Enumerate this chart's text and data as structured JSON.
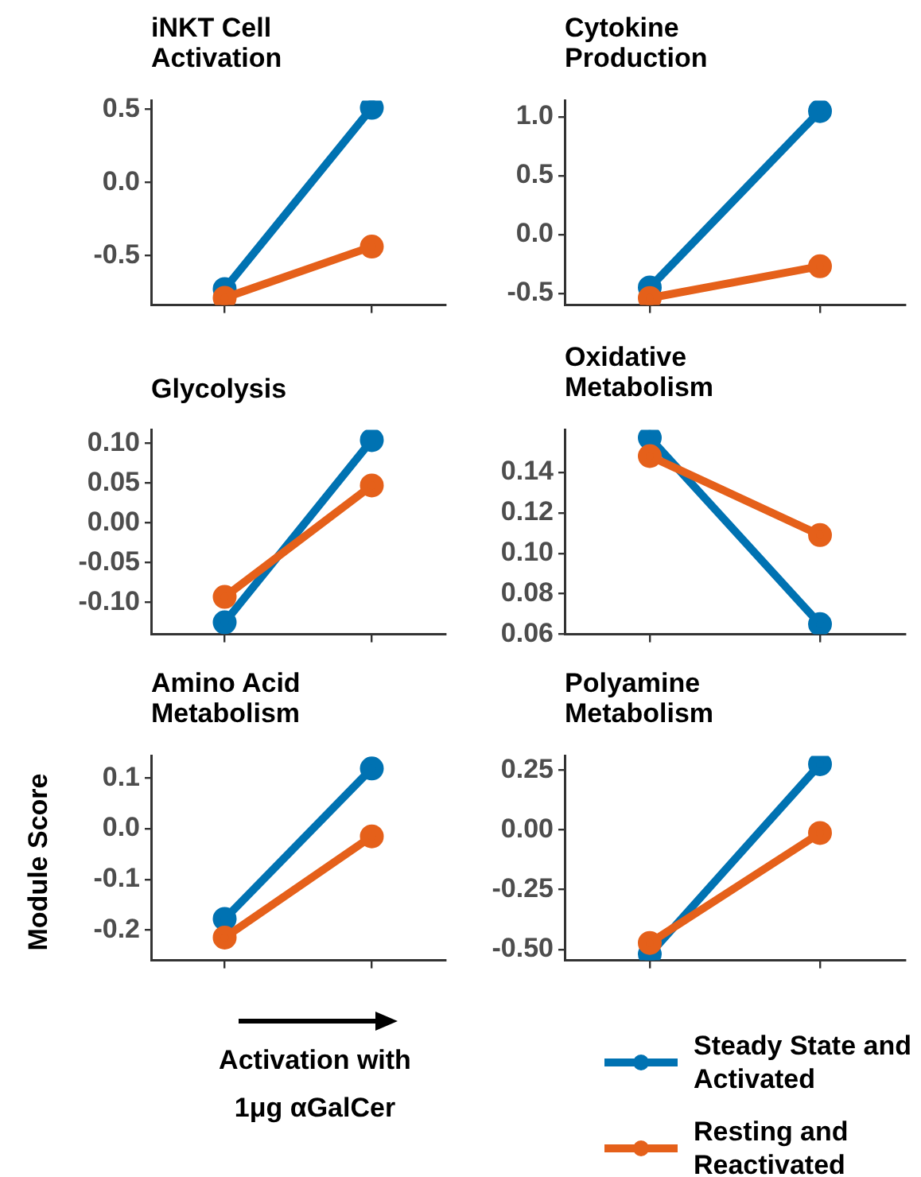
{
  "chart_data": [
    {
      "type": "line",
      "title": "iNKT Cell Activation",
      "categories": [
        null,
        null
      ],
      "ylim": [
        -0.84,
        0.56
      ],
      "yticks": [
        0.5,
        {
          "value": 0,
          "label": "0.0"
        },
        -0.5
      ],
      "tick_labels": "y",
      "grid": false,
      "marker": "circle",
      "series": [
        {
          "color": "#0072b2",
          "values": [
            -0.73,
            0.51
          ]
        },
        {
          "color": "#e5601a",
          "values": [
            -0.79,
            -0.44
          ]
        }
      ]
    },
    {
      "type": "line",
      "title": "Cytokine Production",
      "categories": [
        null,
        null
      ],
      "ylim": [
        -0.6,
        1.14
      ],
      "yticks": [
        {
          "value": 1,
          "label": "1.0"
        },
        0.5,
        {
          "value": 0,
          "label": "0.0"
        },
        -0.5
      ],
      "tick_labels": "y",
      "grid": false,
      "marker": "circle",
      "series": [
        {
          "color": "#0072b2",
          "values": [
            -0.45,
            1.05
          ]
        },
        {
          "color": "#e5601a",
          "values": [
            -0.54,
            -0.27
          ]
        }
      ]
    },
    {
      "type": "line",
      "title": "Glycolysis",
      "categories": [
        null,
        null
      ],
      "ylim": [
        -0.14,
        0.117
      ],
      "yticks": [
        {
          "value": 0.1,
          "label": "0.10"
        },
        0.05,
        {
          "value": 0,
          "label": "0.00"
        },
        -0.05,
        {
          "value": -0.1,
          "label": "-0.10"
        }
      ],
      "tick_labels": "y",
      "grid": false,
      "marker": "circle",
      "series": [
        {
          "color": "#0072b2",
          "values": [
            -0.125,
            0.104
          ]
        },
        {
          "color": "#e5601a",
          "values": [
            -0.093,
            0.047
          ]
        }
      ]
    },
    {
      "type": "line",
      "title": "Oxidative Metabolism",
      "categories": [
        null,
        null
      ],
      "ylim": [
        0.06,
        0.161
      ],
      "yticks": [
        0.14,
        0.12,
        {
          "value": 0.1,
          "label": "0.10"
        },
        0.08,
        0.06
      ],
      "tick_labels": "y",
      "grid": false,
      "marker": "circle",
      "series": [
        {
          "color": "#0072b2",
          "values": [
            0.157,
            0.065
          ]
        },
        {
          "color": "#e5601a",
          "values": [
            0.148,
            0.109
          ]
        }
      ]
    },
    {
      "type": "line",
      "title": "Amino Acid Metabolism",
      "xlabel": "Activation with 1μg αGalCer",
      "ylabel": "Module Score",
      "categories": [
        null,
        null
      ],
      "ylim": [
        -0.26,
        0.144
      ],
      "yticks": [
        0.1,
        {
          "value": 0,
          "label": "0.0"
        },
        -0.1,
        -0.2
      ],
      "tick_labels": "y",
      "grid": false,
      "marker": "circle",
      "series": [
        {
          "color": "#0072b2",
          "values": [
            -0.178,
            0.119
          ]
        },
        {
          "color": "#e5601a",
          "values": [
            -0.215,
            -0.015
          ]
        }
      ]
    },
    {
      "type": "line",
      "title": "Polyamine Metabolism",
      "categories": [
        null,
        null
      ],
      "ylim": [
        -0.546,
        0.31
      ],
      "yticks": [
        0.25,
        {
          "value": 0,
          "label": "0.00"
        },
        -0.25,
        {
          "value": -0.5,
          "label": "-0.50"
        }
      ],
      "tick_labels": "y",
      "grid": false,
      "marker": "circle",
      "legend": "bottom",
      "series": [
        {
          "name": "Steady State and Activated",
          "color": "#0072b2",
          "values": [
            -0.52,
            0.275
          ]
        },
        {
          "name": "Resting and Reactivated",
          "color": "#e5601a",
          "values": [
            -0.473,
            -0.013
          ]
        }
      ]
    }
  ]
}
